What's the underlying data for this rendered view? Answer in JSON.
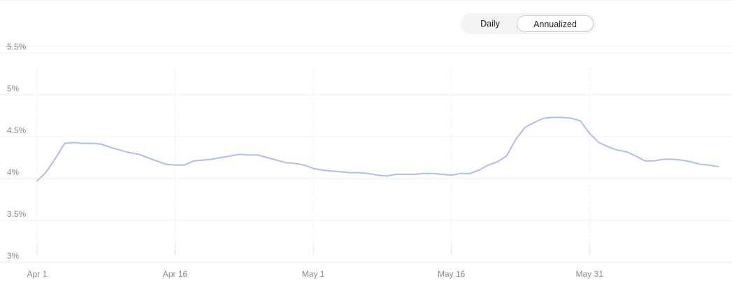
{
  "toggle": {
    "options": [
      "Daily",
      "Annualized"
    ],
    "selected": "Annualized"
  },
  "chart_data": {
    "type": "line",
    "title": "",
    "xlabel": "",
    "ylabel": "",
    "ylim": [
      3,
      5.5
    ],
    "y_ticks": [
      {
        "value": 3,
        "label": "3%"
      },
      {
        "value": 3.5,
        "label": "3.5%"
      },
      {
        "value": 4,
        "label": "4%"
      },
      {
        "value": 4.5,
        "label": "4.5%"
      },
      {
        "value": 5,
        "label": "5%"
      },
      {
        "value": 5.5,
        "label": "5.5%"
      }
    ],
    "x_ticks": [
      {
        "day": 0,
        "label": "Apr 1"
      },
      {
        "day": 15,
        "label": "Apr 16"
      },
      {
        "day": 30,
        "label": "May 1"
      },
      {
        "day": 45,
        "label": "May 16"
      },
      {
        "day": 60,
        "label": "May 31"
      }
    ],
    "grid": true,
    "line_color": "#aebcf2",
    "series": [
      {
        "values": [
          [
            0,
            3.97
          ],
          [
            1,
            4.08
          ],
          [
            2,
            4.24
          ],
          [
            3,
            4.42
          ],
          [
            4,
            4.43
          ],
          [
            5,
            4.42
          ],
          [
            6,
            4.42
          ],
          [
            7,
            4.41
          ],
          [
            8,
            4.37
          ],
          [
            9,
            4.34
          ],
          [
            10,
            4.31
          ],
          [
            11,
            4.29
          ],
          [
            12,
            4.25
          ],
          [
            13,
            4.21
          ],
          [
            14,
            4.17
          ],
          [
            15,
            4.16
          ],
          [
            16,
            4.16
          ],
          [
            17,
            4.21
          ],
          [
            18,
            4.22
          ],
          [
            19,
            4.23
          ],
          [
            20,
            4.25
          ],
          [
            21,
            4.27
          ],
          [
            22,
            4.29
          ],
          [
            23,
            4.28
          ],
          [
            24,
            4.28
          ],
          [
            25,
            4.25
          ],
          [
            26,
            4.22
          ],
          [
            27,
            4.19
          ],
          [
            28,
            4.18
          ],
          [
            29,
            4.16
          ],
          [
            30,
            4.12
          ],
          [
            31,
            4.1
          ],
          [
            32,
            4.09
          ],
          [
            33,
            4.08
          ],
          [
            34,
            4.07
          ],
          [
            35,
            4.07
          ],
          [
            36,
            4.06
          ],
          [
            37,
            4.04
          ],
          [
            38,
            4.03
          ],
          [
            39,
            4.05
          ],
          [
            40,
            4.05
          ],
          [
            41,
            4.05
          ],
          [
            42,
            4.06
          ],
          [
            43,
            4.06
          ],
          [
            44,
            4.05
          ],
          [
            45,
            4.04
          ],
          [
            46,
            4.06
          ],
          [
            47,
            4.06
          ],
          [
            48,
            4.1
          ],
          [
            49,
            4.16
          ],
          [
            50,
            4.2
          ],
          [
            51,
            4.27
          ],
          [
            52,
            4.47
          ],
          [
            53,
            4.61
          ],
          [
            54,
            4.67
          ],
          [
            55,
            4.72
          ],
          [
            56,
            4.73
          ],
          [
            57,
            4.73
          ],
          [
            58,
            4.72
          ],
          [
            59,
            4.69
          ],
          [
            60,
            4.54
          ],
          [
            61,
            4.43
          ],
          [
            62,
            4.38
          ],
          [
            63,
            4.34
          ],
          [
            64,
            4.32
          ],
          [
            65,
            4.27
          ],
          [
            66,
            4.21
          ],
          [
            67,
            4.21
          ],
          [
            68,
            4.23
          ],
          [
            69,
            4.23
          ],
          [
            70,
            4.22
          ],
          [
            71,
            4.2
          ],
          [
            72,
            4.17
          ],
          [
            73,
            4.16
          ],
          [
            74,
            4.14
          ]
        ]
      }
    ]
  }
}
